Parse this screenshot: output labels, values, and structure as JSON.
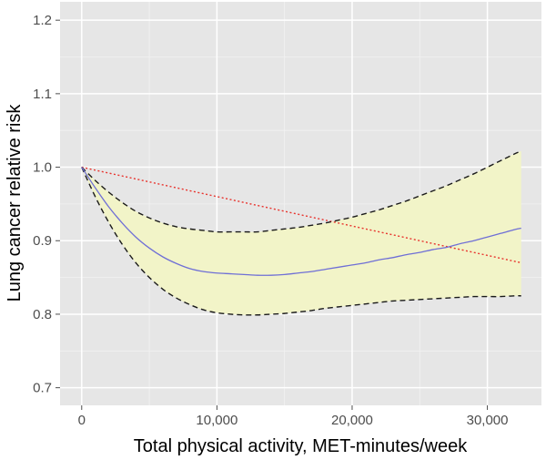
{
  "chart_data": {
    "type": "line",
    "title": "",
    "xlabel": "Total physical activity, MET-minutes/week",
    "ylabel": "Lung cancer relative risk",
    "xlim": [
      -1600,
      34000
    ],
    "ylim": [
      0.676,
      1.225
    ],
    "x_ticks": [
      0,
      10000,
      20000,
      30000
    ],
    "x_tick_labels": [
      "0",
      "10,000",
      "20,000",
      "30,000"
    ],
    "y_ticks": [
      0.7,
      0.8,
      0.9,
      1.0,
      1.1,
      1.2
    ],
    "y_tick_labels": [
      "0.7",
      "0.8",
      "0.9",
      "1.0",
      "1.1",
      "1.2"
    ],
    "grid": true,
    "x": [
      0,
      1000,
      2000,
      3000,
      4000,
      5000,
      6000,
      7000,
      8000,
      9000,
      10000,
      11000,
      12000,
      13000,
      14000,
      15000,
      16000,
      17000,
      18000,
      19000,
      20000,
      21000,
      22000,
      23000,
      24000,
      25000,
      26000,
      27000,
      28000,
      29000,
      30000,
      31000,
      32000,
      32500
    ],
    "series": [
      {
        "role": "estimate",
        "style": "solid",
        "color": "#6f6fd6",
        "values": [
          1.0,
          0.972,
          0.946,
          0.924,
          0.905,
          0.89,
          0.878,
          0.869,
          0.862,
          0.858,
          0.856,
          0.855,
          0.854,
          0.853,
          0.853,
          0.854,
          0.856,
          0.858,
          0.861,
          0.864,
          0.867,
          0.87,
          0.874,
          0.877,
          0.881,
          0.884,
          0.888,
          0.891,
          0.896,
          0.9,
          0.905,
          0.91,
          0.915,
          0.917
        ]
      },
      {
        "role": "upper-ci",
        "style": "dashed",
        "color": "#1a1a1a",
        "values": [
          1.0,
          0.982,
          0.966,
          0.952,
          0.94,
          0.931,
          0.924,
          0.919,
          0.916,
          0.914,
          0.912,
          0.912,
          0.912,
          0.912,
          0.914,
          0.916,
          0.918,
          0.921,
          0.924,
          0.928,
          0.932,
          0.937,
          0.942,
          0.948,
          0.954,
          0.961,
          0.968,
          0.975,
          0.983,
          0.991,
          1.0,
          1.009,
          1.018,
          1.022
        ]
      },
      {
        "role": "lower-ci",
        "style": "dashed",
        "color": "#1a1a1a",
        "values": [
          1.0,
          0.96,
          0.925,
          0.895,
          0.87,
          0.85,
          0.834,
          0.822,
          0.813,
          0.806,
          0.802,
          0.8,
          0.799,
          0.799,
          0.8,
          0.801,
          0.803,
          0.805,
          0.808,
          0.81,
          0.812,
          0.814,
          0.816,
          0.818,
          0.819,
          0.82,
          0.821,
          0.822,
          0.823,
          0.824,
          0.824,
          0.824,
          0.825,
          0.825
        ]
      },
      {
        "role": "linear-trend",
        "style": "dotted",
        "color": "#e8352f",
        "values": [
          1.0,
          0.996,
          0.992,
          0.988,
          0.984,
          0.98,
          0.976,
          0.972,
          0.968,
          0.964,
          0.96,
          0.956,
          0.952,
          0.948,
          0.944,
          0.94,
          0.936,
          0.932,
          0.928,
          0.924,
          0.92,
          0.916,
          0.912,
          0.908,
          0.904,
          0.9,
          0.896,
          0.892,
          0.888,
          0.884,
          0.88,
          0.876,
          0.872,
          0.87
        ]
      }
    ],
    "band_fill_color": "#f2f4c8",
    "panel_color": "#e6e6e6"
  }
}
